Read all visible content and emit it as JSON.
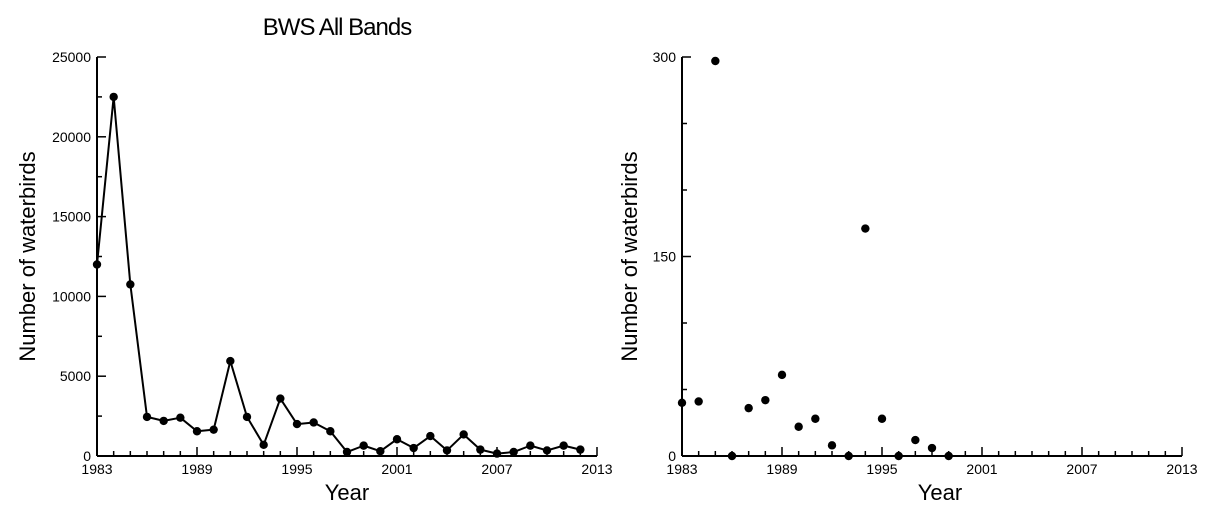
{
  "chart_data": [
    {
      "type": "line",
      "title": "BWS All Bands",
      "xlabel": "Year",
      "ylabel": "Number of waterbirds",
      "xlim": [
        1983,
        2013
      ],
      "ylim": [
        0,
        25000
      ],
      "x_ticks": [
        "1983",
        "1989",
        "1995",
        "2001",
        "2007",
        "2013"
      ],
      "y_ticks": [
        "0",
        "5000",
        "10000",
        "15000",
        "20000",
        "25000"
      ],
      "grid": false,
      "markers": true,
      "series": [
        {
          "x": [
            1983,
            1984,
            1985,
            1986,
            1987,
            1988,
            1989,
            1990,
            1991,
            1992,
            1993,
            1994,
            1995,
            1996,
            1997,
            1998,
            1999,
            2000,
            2001,
            2002,
            2003,
            2004,
            2005,
            2006,
            2007,
            2008,
            2009,
            2010,
            2011,
            2012
          ],
          "y": [
            12000,
            22500,
            10750,
            2450,
            2200,
            2400,
            1550,
            1650,
            5950,
            2450,
            700,
            3600,
            2000,
            2100,
            1550,
            250,
            650,
            300,
            1050,
            500,
            1250,
            350,
            1350,
            400,
            150,
            250,
            650,
            350,
            650,
            400
          ]
        }
      ]
    },
    {
      "type": "scatter",
      "title": "",
      "xlabel": "Year",
      "ylabel": "Number of waterbirds",
      "xlim": [
        1983,
        2013
      ],
      "ylim": [
        0,
        300
      ],
      "x_ticks": [
        "1983",
        "1989",
        "1995",
        "2001",
        "2007",
        "2013"
      ],
      "y_ticks": [
        "0",
        "150",
        "300"
      ],
      "grid": false,
      "series": [
        {
          "x": [
            1983,
            1984,
            1985,
            1986,
            1987,
            1988,
            1989,
            1990,
            1991,
            1992,
            1993,
            1994,
            1995,
            1996,
            1997,
            1998,
            1999
          ],
          "y": [
            40,
            41,
            297,
            0,
            36,
            42,
            61,
            22,
            28,
            8,
            0,
            171,
            28,
            0,
            12,
            6,
            0
          ]
        }
      ]
    }
  ]
}
